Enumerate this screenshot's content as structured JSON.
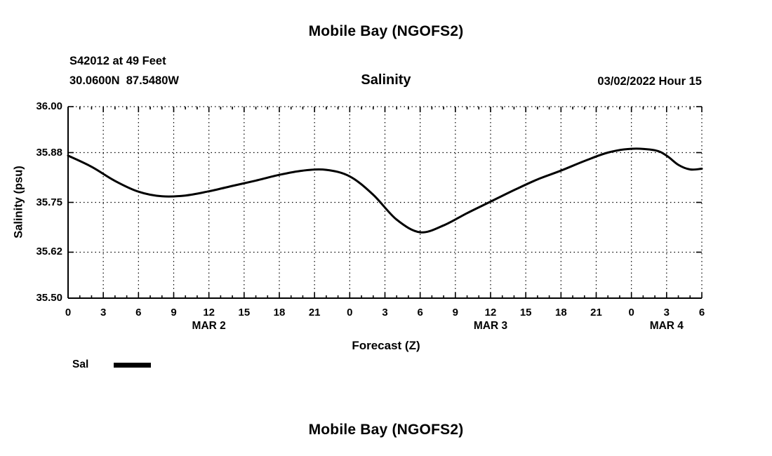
{
  "header": {
    "title": "Mobile Bay (NGOFS2)",
    "station": "S42012 at 49 Feet",
    "coords": "30.0600N  87.5480W",
    "datetime": "03/02/2022 Hour 15"
  },
  "footer": {
    "title": "Mobile Bay (NGOFS2)"
  },
  "legend": {
    "label": "Sal"
  },
  "chart_data": {
    "type": "line",
    "title": "Salinity",
    "xlabel": "Forecast (Z)",
    "ylabel": "Salinity (psu)",
    "grid": "dotted",
    "legend_position": "bottom-left",
    "line_color": "#000000",
    "xlim": [
      0,
      54
    ],
    "ylim": [
      35.5,
      36.0
    ],
    "yticks": [
      35.5,
      35.62,
      35.75,
      35.88,
      36.0
    ],
    "xticks": [
      0,
      3,
      6,
      9,
      12,
      15,
      18,
      21,
      24,
      27,
      30,
      33,
      36,
      39,
      42,
      45,
      48,
      51,
      54
    ],
    "xtick_labels": [
      "0",
      "3",
      "6",
      "9",
      "12",
      "15",
      "18",
      "21",
      "0",
      "3",
      "6",
      "9",
      "12",
      "15",
      "18",
      "21",
      "0",
      "3",
      "6"
    ],
    "date_labels": [
      {
        "label": "MAR 2",
        "x": 12
      },
      {
        "label": "MAR 3",
        "x": 36
      },
      {
        "label": "MAR 4",
        "x": 51
      }
    ],
    "series": [
      {
        "name": "Sal",
        "color": "#000000",
        "x": [
          0,
          2,
          4,
          6,
          8,
          10,
          12,
          14,
          16,
          18,
          20,
          22,
          24,
          26,
          28,
          30,
          32,
          34,
          36,
          38,
          40,
          42,
          44,
          46,
          48,
          50,
          51,
          52,
          53,
          54
        ],
        "y": [
          35.872,
          35.843,
          35.806,
          35.778,
          35.766,
          35.768,
          35.779,
          35.793,
          35.807,
          35.822,
          35.833,
          35.835,
          35.818,
          35.77,
          35.705,
          35.672,
          35.69,
          35.722,
          35.752,
          35.782,
          35.81,
          35.833,
          35.858,
          35.88,
          35.89,
          35.886,
          35.872,
          35.848,
          35.836,
          35.838
        ]
      }
    ]
  }
}
